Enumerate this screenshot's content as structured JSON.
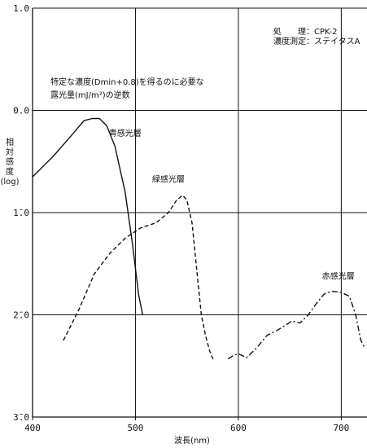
{
  "chart_data": {
    "type": "line",
    "x_unit_label": "波長(nm)",
    "y_label_lines": [
      "相",
      "対",
      "感",
      "度",
      "(log)"
    ],
    "annotation_lines": [
      "特定な濃度(Dmin+0.8)を得るのに必要な",
      "露光量(mJ/m²)の逆数"
    ],
    "info_lines": [
      "処　　理：CPK-2",
      "濃度測定：ステイタスA"
    ],
    "xlim": [
      400,
      725
    ],
    "ylim": [
      -3.0,
      1.0
    ],
    "x_ticks": [
      {
        "value": 400,
        "label": "400"
      },
      {
        "value": 500,
        "label": "500"
      },
      {
        "value": 600,
        "label": "600"
      },
      {
        "value": 700,
        "label": "700"
      }
    ],
    "y_ticks": [
      {
        "value": 1.0,
        "label": "1.0"
      },
      {
        "value": 0.0,
        "label": "0.0"
      },
      {
        "value": -1.0,
        "label": "1̄.0"
      },
      {
        "value": -2.0,
        "label": "2̄.0"
      },
      {
        "value": -3.0,
        "label": "3̄.0"
      }
    ],
    "series": [
      {
        "name": "青感光層",
        "dash": "solid",
        "label_at": [
          490,
          -0.25
        ],
        "points": [
          [
            400,
            -0.65
          ],
          [
            420,
            -0.45
          ],
          [
            440,
            -0.22
          ],
          [
            450,
            -0.1
          ],
          [
            458,
            -0.08
          ],
          [
            465,
            -0.08
          ],
          [
            472,
            -0.15
          ],
          [
            480,
            -0.35
          ],
          [
            490,
            -0.8
          ],
          [
            497,
            -1.3
          ],
          [
            503,
            -1.8
          ],
          [
            507,
            -2.0
          ]
        ]
      },
      {
        "name": "緑感光層",
        "dash": "dashed",
        "label_at": [
          532,
          -0.7
        ],
        "points": [
          [
            430,
            -2.25
          ],
          [
            445,
            -1.95
          ],
          [
            460,
            -1.6
          ],
          [
            475,
            -1.4
          ],
          [
            490,
            -1.25
          ],
          [
            505,
            -1.15
          ],
          [
            520,
            -1.1
          ],
          [
            532,
            -1.0
          ],
          [
            540,
            -0.88
          ],
          [
            546,
            -0.83
          ],
          [
            550,
            -0.88
          ],
          [
            555,
            -1.1
          ],
          [
            560,
            -1.6
          ],
          [
            564,
            -2.0
          ],
          [
            568,
            -2.2
          ],
          [
            572,
            -2.35
          ],
          [
            576,
            -2.45
          ]
        ]
      },
      {
        "name": "赤感光層",
        "dash": "dashdot",
        "label_at": [
          697,
          -1.65
        ],
        "points": [
          [
            590,
            -2.43
          ],
          [
            595,
            -2.4
          ],
          [
            600,
            -2.38
          ],
          [
            608,
            -2.42
          ],
          [
            618,
            -2.32
          ],
          [
            628,
            -2.2
          ],
          [
            638,
            -2.15
          ],
          [
            646,
            -2.1
          ],
          [
            652,
            -2.06
          ],
          [
            660,
            -2.08
          ],
          [
            668,
            -2.0
          ],
          [
            675,
            -1.9
          ],
          [
            683,
            -1.8
          ],
          [
            690,
            -1.77
          ],
          [
            700,
            -1.78
          ],
          [
            708,
            -1.82
          ],
          [
            714,
            -2.0
          ],
          [
            719,
            -2.25
          ],
          [
            723,
            -2.33
          ]
        ]
      }
    ],
    "grid": true
  }
}
